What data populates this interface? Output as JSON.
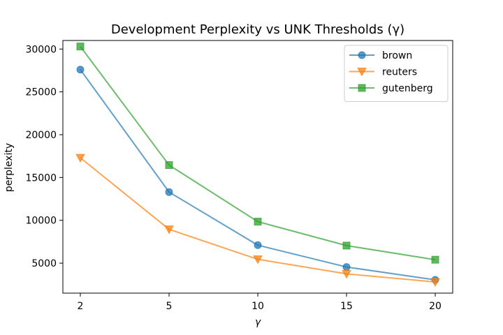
{
  "chart_data": {
    "type": "line",
    "title": "Development Perplexity vs UNK Thresholds (γ)",
    "xlabel": "γ",
    "ylabel": "perplexity",
    "categories": [
      "2",
      "5",
      "10",
      "15",
      "20"
    ],
    "yticks": [
      "5000",
      "10000",
      "15000",
      "20000",
      "25000",
      "30000"
    ],
    "ylim": [
      1500,
      31000
    ],
    "grid": false,
    "legend": "top-right",
    "series": [
      {
        "name": "brown",
        "marker": "circle",
        "color": "#1f77b4",
        "values": [
          27600,
          13300,
          7100,
          4550,
          3050
        ]
      },
      {
        "name": "reuters",
        "marker": "triangle-down",
        "color": "#ff7f0e",
        "values": [
          17300,
          8950,
          5450,
          3750,
          2800
        ]
      },
      {
        "name": "gutenberg",
        "marker": "square",
        "color": "#2ca02c",
        "values": [
          30300,
          16450,
          9850,
          7050,
          5400
        ]
      }
    ]
  }
}
